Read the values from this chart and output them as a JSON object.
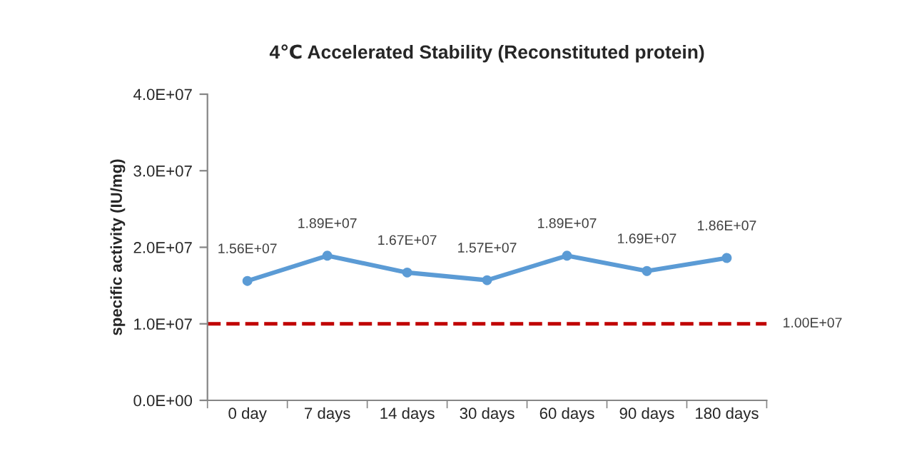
{
  "chart_data": {
    "type": "line",
    "title": "4℃ Accelerated Stability (Reconstituted protein)",
    "ylabel": "specific activity (IU/mg)",
    "categories": [
      "0 day",
      "7 days",
      "14 days",
      "30 days",
      "60 days",
      "90 days",
      "180 days"
    ],
    "series": [
      {
        "color": "#5b9bd5",
        "values": [
          15600000,
          18900000,
          16700000,
          15700000,
          18900000,
          16900000,
          18600000
        ],
        "value_labels": [
          "1.56E+07",
          "1.89E+07",
          "1.67E+07",
          "1.57E+07",
          "1.89E+07",
          "1.69E+07",
          "1.86E+07"
        ]
      }
    ],
    "ylim": [
      0,
      40000000
    ],
    "yticks": [
      {
        "value": 0,
        "label": "0.0E+00"
      },
      {
        "value": 10000000,
        "label": "1.0E+07"
      },
      {
        "value": 20000000,
        "label": "2.0E+07"
      },
      {
        "value": 30000000,
        "label": "3.0E+07"
      },
      {
        "value": 40000000,
        "label": "4.0E+07"
      }
    ],
    "ref_lines": [
      {
        "axis": "y",
        "value": 10000000,
        "label": "1.00E+07",
        "color": "#c00000",
        "line_style": "dashed"
      }
    ],
    "marker": "circle",
    "line_style": "solid",
    "grid": false
  }
}
